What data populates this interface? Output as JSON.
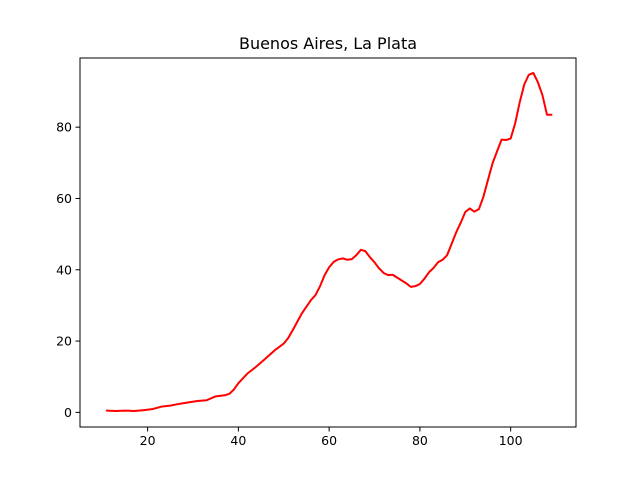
{
  "chart_data": {
    "type": "line",
    "title": "Buenos Aires, La Plata",
    "xlabel": "",
    "ylabel": "",
    "xlim": [
      5.1,
      114.4
    ],
    "ylim": [
      -4.1,
      99.4
    ],
    "x_ticks": [
      20,
      40,
      60,
      80,
      100
    ],
    "y_ticks": [
      0,
      20,
      40,
      60,
      80
    ],
    "grid": false,
    "series": [
      {
        "color": "#ff0000",
        "x": [
          11,
          13,
          15,
          17,
          19,
          21,
          23,
          25,
          27,
          29,
          31,
          33,
          35,
          37,
          38,
          39,
          40,
          42,
          44,
          46,
          48,
          50,
          51,
          52,
          54,
          56,
          57,
          58,
          59,
          60,
          61,
          62,
          63,
          64,
          65,
          66,
          67,
          68,
          69,
          70,
          71,
          72,
          73,
          74,
          75,
          76,
          77,
          78,
          79,
          80,
          81,
          82,
          83,
          84,
          85,
          86,
          87,
          88,
          89,
          90,
          91,
          92,
          93,
          94,
          95,
          96,
          97,
          98,
          99,
          100,
          101,
          102,
          103,
          104,
          105,
          106,
          107,
          108,
          109
        ],
        "values": [
          0.5,
          0.4,
          0.5,
          0.4,
          0.6,
          0.9,
          1.6,
          1.9,
          2.4,
          2.8,
          3.2,
          3.4,
          4.5,
          4.8,
          5.2,
          6.4,
          8.2,
          10.9,
          12.9,
          15.1,
          17.4,
          19.3,
          20.9,
          23.1,
          27.8,
          31.5,
          32.9,
          35.4,
          38.5,
          40.7,
          42.2,
          42.9,
          43.2,
          42.8,
          43.0,
          44.1,
          45.6,
          45.2,
          43.5,
          42.1,
          40.4,
          39.1,
          38.5,
          38.6,
          37.8,
          37.0,
          36.2,
          35.2,
          35.4,
          36.0,
          37.5,
          39.3,
          40.5,
          42.1,
          42.8,
          44.1,
          47.3,
          50.5,
          53.2,
          56.2,
          57.2,
          56.3,
          57.0,
          60.5,
          65.2,
          69.8,
          73.2,
          76.5,
          76.4,
          76.8,
          81.1,
          87.0,
          92.0,
          94.7,
          95.2,
          92.6,
          89.0,
          83.5,
          83.5
        ]
      }
    ]
  }
}
